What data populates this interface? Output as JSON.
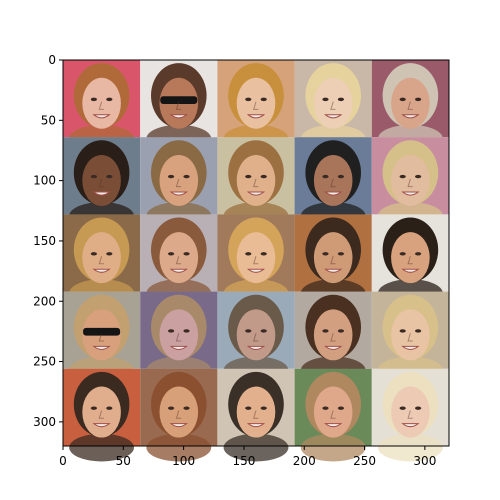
{
  "chart_data": {
    "type": "heatmap",
    "title": "",
    "xlabel": "",
    "ylabel": "",
    "xlim": [
      0,
      320
    ],
    "ylim": [
      320,
      0
    ],
    "xticks": [
      0,
      50,
      100,
      150,
      200,
      250,
      300
    ],
    "yticks": [
      0,
      50,
      100,
      150,
      200,
      250,
      300
    ],
    "grid": false,
    "image_grid": {
      "rows": 5,
      "cols": 5,
      "tile_size": 64
    },
    "tiles": [
      {
        "row": 0,
        "col": 0,
        "bg": "#d9566a",
        "skin": "#e9b8a4",
        "hair": "#b06a3a",
        "glasses": false
      },
      {
        "row": 0,
        "col": 1,
        "bg": "#e8e4e2",
        "skin": "#b7795a",
        "hair": "#5a3a2a",
        "glasses": true
      },
      {
        "row": 0,
        "col": 2,
        "bg": "#d5a27a",
        "skin": "#e9c1a0",
        "hair": "#c8903c",
        "glasses": false
      },
      {
        "row": 0,
        "col": 3,
        "bg": "#c9b8a8",
        "skin": "#eccfb4",
        "hair": "#e6d29c",
        "glasses": false
      },
      {
        "row": 0,
        "col": 4,
        "bg": "#9a5a6a",
        "skin": "#d8a58a",
        "hair": "#cfc4b4",
        "glasses": false
      },
      {
        "row": 1,
        "col": 0,
        "bg": "#6e7d8c",
        "skin": "#7a4e36",
        "hair": "#2a1e18",
        "glasses": false
      },
      {
        "row": 1,
        "col": 1,
        "bg": "#9aa0b0",
        "skin": "#d8a27e",
        "hair": "#8a6a44",
        "glasses": false
      },
      {
        "row": 1,
        "col": 2,
        "bg": "#c8c0a0",
        "skin": "#e0b08a",
        "hair": "#9c7040",
        "glasses": false
      },
      {
        "row": 1,
        "col": 3,
        "bg": "#6a7c98",
        "skin": "#a8745a",
        "hair": "#202020",
        "glasses": false
      },
      {
        "row": 1,
        "col": 4,
        "bg": "#c88ea0",
        "skin": "#e2bc9e",
        "hair": "#d6c08a",
        "glasses": false
      },
      {
        "row": 2,
        "col": 0,
        "bg": "#8a6a48",
        "skin": "#e0ae86",
        "hair": "#c69a52",
        "glasses": false
      },
      {
        "row": 2,
        "col": 1,
        "bg": "#b8b0b4",
        "skin": "#dcaa8a",
        "hair": "#8a5a3c",
        "glasses": false
      },
      {
        "row": 2,
        "col": 2,
        "bg": "#a07a5a",
        "skin": "#eabc96",
        "hair": "#d4a45a",
        "glasses": false
      },
      {
        "row": 2,
        "col": 3,
        "bg": "#b07040",
        "skin": "#cf9a76",
        "hair": "#3c2a1e",
        "glasses": false
      },
      {
        "row": 2,
        "col": 4,
        "bg": "#e6e2dc",
        "skin": "#d8a27e",
        "hair": "#2a2018",
        "glasses": false
      },
      {
        "row": 3,
        "col": 0,
        "bg": "#a8a294",
        "skin": "#d8a07c",
        "hair": "#c2a070",
        "glasses": true
      },
      {
        "row": 3,
        "col": 1,
        "bg": "#7a6a8a",
        "skin": "#caa0a0",
        "hair": "#a88a6a",
        "glasses": false
      },
      {
        "row": 3,
        "col": 2,
        "bg": "#9aaab8",
        "skin": "#c29a8a",
        "hair": "#6a5a4a",
        "glasses": false
      },
      {
        "row": 3,
        "col": 3,
        "bg": "#b2aaa0",
        "skin": "#d2a080",
        "hair": "#4a3020",
        "glasses": false
      },
      {
        "row": 3,
        "col": 4,
        "bg": "#c4b49a",
        "skin": "#e8c4a4",
        "hair": "#d8c08a",
        "glasses": false
      },
      {
        "row": 4,
        "col": 0,
        "bg": "#c86040",
        "skin": "#e0ae8c",
        "hair": "#3a2a20",
        "glasses": false
      },
      {
        "row": 4,
        "col": 1,
        "bg": "#9a6a50",
        "skin": "#d8a078",
        "hair": "#8a5030",
        "glasses": false
      },
      {
        "row": 4,
        "col": 2,
        "bg": "#d0c4b4",
        "skin": "#e2b08c",
        "hair": "#3a3028",
        "glasses": false
      },
      {
        "row": 4,
        "col": 3,
        "bg": "#6a8a5a",
        "skin": "#e0a88a",
        "hair": "#b08860",
        "glasses": false
      },
      {
        "row": 4,
        "col": 4,
        "bg": "#e4e0d6",
        "skin": "#eccab4",
        "hair": "#ece0c0",
        "glasses": false
      }
    ]
  }
}
